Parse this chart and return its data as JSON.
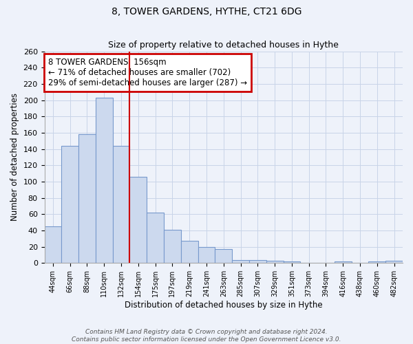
{
  "title": "8, TOWER GARDENS, HYTHE, CT21 6DG",
  "subtitle": "Size of property relative to detached houses in Hythe",
  "xlabel": "Distribution of detached houses by size in Hythe",
  "ylabel": "Number of detached properties",
  "bar_labels": [
    "44sqm",
    "66sqm",
    "88sqm",
    "110sqm",
    "132sqm",
    "154sqm",
    "175sqm",
    "197sqm",
    "219sqm",
    "241sqm",
    "263sqm",
    "285sqm",
    "307sqm",
    "329sqm",
    "351sqm",
    "373sqm",
    "394sqm",
    "416sqm",
    "438sqm",
    "460sqm",
    "482sqm"
  ],
  "bar_values": [
    45,
    144,
    158,
    203,
    144,
    106,
    62,
    41,
    27,
    20,
    17,
    4,
    4,
    3,
    2,
    0,
    0,
    2,
    0,
    2,
    3
  ],
  "bar_color": "#ccd9ee",
  "bar_edge_color": "#7799cc",
  "property_line_color": "#cc0000",
  "annotation_line1": "8 TOWER GARDENS: 156sqm",
  "annotation_line2": "← 71% of detached houses are smaller (702)",
  "annotation_line3": "29% of semi-detached houses are larger (287) →",
  "annotation_box_color": "white",
  "annotation_box_edge": "#cc0000",
  "ylim": [
    0,
    260
  ],
  "yticks": [
    0,
    20,
    40,
    60,
    80,
    100,
    120,
    140,
    160,
    180,
    200,
    220,
    240,
    260
  ],
  "footer_line1": "Contains HM Land Registry data © Crown copyright and database right 2024.",
  "footer_line2": "Contains public sector information licensed under the Open Government Licence v3.0.",
  "background_color": "#eef2fa"
}
